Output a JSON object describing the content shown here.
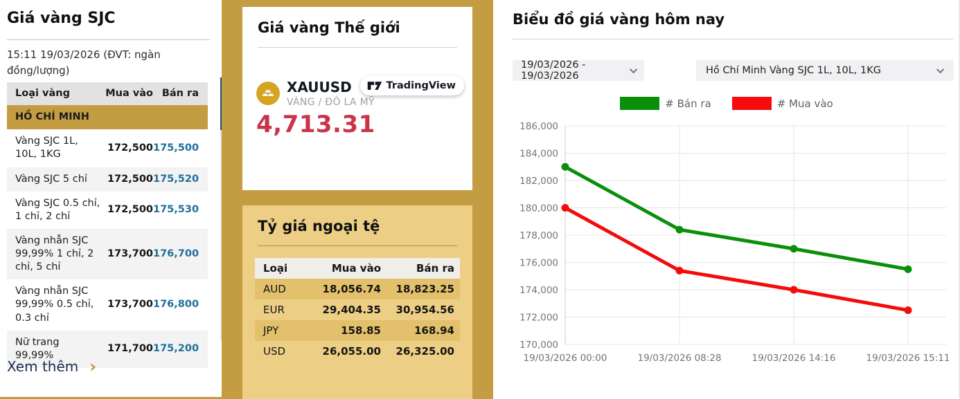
{
  "left_panel": {
    "title": "Giá vàng SJC",
    "timestamp": "15:11 19/03/2026 (ĐVT: ngàn đồng/lượng)",
    "table": {
      "headers": {
        "name": "Loại vàng",
        "buy": "Mua vào",
        "sell": "Bán ra"
      },
      "region": "HỒ CHÍ MINH",
      "rows": [
        {
          "name": "Vàng SJC 1L, 10L, 1KG",
          "buy": "172,500",
          "sell": "175,500"
        },
        {
          "name": "Vàng SJC 5 chỉ",
          "buy": "172,500",
          "sell": "175,520"
        },
        {
          "name": "Vàng SJC 0.5 chỉ, 1 chỉ, 2 chỉ",
          "buy": "172,500",
          "sell": "175,530"
        },
        {
          "name": "Vàng nhẫn SJC 99,99% 1 chỉ, 2 chỉ, 5 chỉ",
          "buy": "173,700",
          "sell": "176,700"
        },
        {
          "name": "Vàng nhẫn SJC 99,99% 0.5 chỉ, 0.3 chỉ",
          "buy": "173,700",
          "sell": "176,800"
        },
        {
          "name": "Nữ trang 99,99%",
          "buy": "171,700",
          "sell": "175,200"
        }
      ]
    },
    "see_more": "Xem thêm",
    "see_more_chevron": "›"
  },
  "world_gold": {
    "title": "Giá vàng Thế giới",
    "symbol": "XAUUSD",
    "symbol_desc": "VÀNG / ĐÔ LA MỸ",
    "brand": "TradingView",
    "price": "4,713.31"
  },
  "forex": {
    "title": "Tỷ giá ngoại tệ",
    "headers": {
      "code": "Loại",
      "buy": "Mua vào",
      "sell": "Bán ra"
    },
    "rows": [
      {
        "code": "AUD",
        "buy": "18,056.74",
        "sell": "18,823.25"
      },
      {
        "code": "EUR",
        "buy": "29,404.35",
        "sell": "30,954.56"
      },
      {
        "code": "JPY",
        "buy": "158.85",
        "sell": "168.94"
      },
      {
        "code": "USD",
        "buy": "26,055.00",
        "sell": "26,325.00"
      }
    ]
  },
  "chart_panel": {
    "title": "Biểu đồ giá vàng hôm nay",
    "date_range": "19/03/2026 - 19/03/2026",
    "series_select": "Hồ Chí Minh Vàng SJC 1L, 10L, 1KG"
  },
  "chart_data": {
    "type": "line",
    "title": "Biểu đồ giá vàng hôm nay",
    "x": [
      "19/03/2026 00:00",
      "19/03/2026 08:28",
      "19/03/2026 14:16",
      "19/03/2026 15:11"
    ],
    "series": [
      {
        "name": "# Bán ra",
        "color": "#0a8f0a",
        "values": [
          183000,
          178400,
          177000,
          175500
        ]
      },
      {
        "name": "# Mua vào",
        "color": "#f40b0b",
        "values": [
          180000,
          175400,
          174000,
          172500
        ]
      }
    ],
    "ylim": [
      170000,
      186000
    ],
    "ytick_step": 2000,
    "grid": true,
    "legend_position": "top"
  },
  "colors": {
    "accent_gold": "#c49d42",
    "card_gold": "#eccf85",
    "sell_blue": "#1e6f9c",
    "price_red": "#c9344a",
    "link_navy": "#1a2c4e",
    "scrollbar_navy": "#1d4f6e"
  }
}
